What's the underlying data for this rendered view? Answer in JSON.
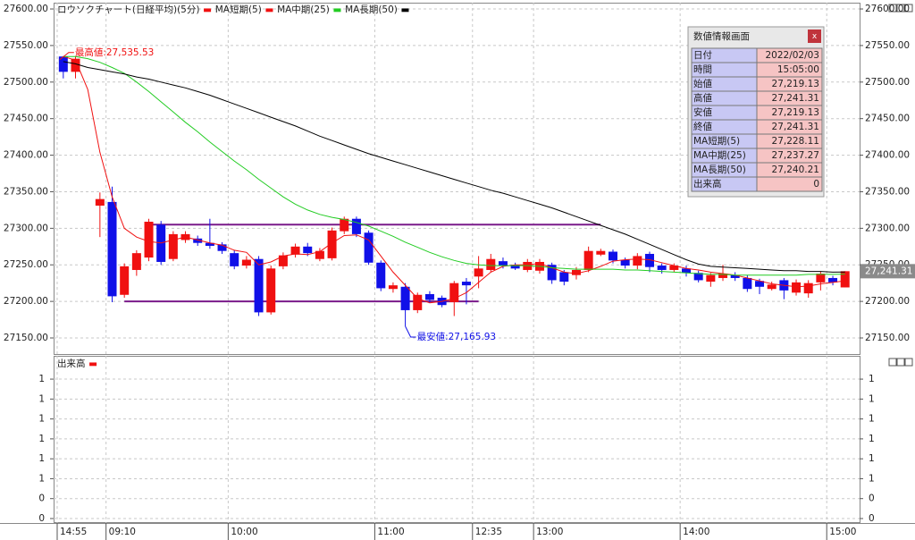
{
  "chart_data": {
    "type": "candlestick",
    "title": "ロウソクチャート(日経平均)(5分)",
    "categories": [
      "14:55",
      null,
      null,
      null,
      "09:10",
      null,
      null,
      null,
      null,
      null,
      null,
      null,
      null,
      null,
      "10:00",
      null,
      null,
      null,
      null,
      null,
      null,
      null,
      null,
      null,
      null,
      null,
      "11:00",
      null,
      null,
      null,
      null,
      null,
      null,
      null,
      "12:35",
      null,
      null,
      null,
      null,
      "13:00",
      null,
      null,
      null,
      null,
      null,
      null,
      null,
      null,
      null,
      null,
      null,
      "14:00",
      null,
      null,
      null,
      null,
      null,
      null,
      null,
      null,
      null,
      null,
      null,
      "15:00",
      null
    ],
    "open": [
      27535,
      27514,
      null,
      27331,
      27336,
      27209,
      27243,
      27260,
      27305,
      27258,
      27284,
      27286,
      27280,
      27278,
      27266,
      27249,
      27258,
      27185,
      27248,
      27264,
      27275,
      27258,
      27259,
      27296,
      27313,
      27294,
      27253,
      27217,
      27220,
      27188,
      27210,
      27205,
      27199,
      27227,
      27234,
      27243,
      27255,
      27250,
      27243,
      27242,
      27250,
      27240,
      27236,
      27243,
      27264,
      27268,
      27257,
      27249,
      27265,
      27249,
      27243,
      27245,
      27239,
      27227,
      27232,
      27236,
      27232,
      27228,
      27217,
      27229,
      27212,
      27211,
      27226,
      27232,
      27219.13
    ],
    "high": [
      27535.53,
      27535,
      null,
      27349,
      27357,
      27252,
      27270,
      27313,
      27310,
      27296,
      27296,
      27290,
      27313,
      27281,
      27270,
      27262,
      27262,
      27249,
      27267,
      27279,
      27280,
      27273,
      27301,
      27316,
      27316,
      27297,
      27256,
      27226,
      27225,
      27212,
      27214,
      27208,
      27228,
      27232,
      27262,
      27265,
      27260,
      27253,
      27258,
      27258,
      27253,
      27243,
      27247,
      27275,
      27272,
      27271,
      27260,
      27266,
      27268,
      27252,
      27252,
      27249,
      27242,
      27239,
      27250,
      27240,
      27236,
      27231,
      27227,
      27232,
      27230,
      27229,
      27241,
      27235,
      27241.31
    ],
    "low": [
      27505,
      27505,
      null,
      27288,
      27199,
      27205,
      27235,
      27255,
      27250,
      27255,
      27280,
      27276,
      27272,
      27265,
      27244,
      27245,
      27180,
      27182,
      27244,
      27260,
      27262,
      27255,
      27256,
      27292,
      27288,
      27250,
      27214,
      27212,
      27165.93,
      27184,
      27198,
      27192,
      27180,
      27196,
      27218,
      27240,
      27245,
      27243,
      27240,
      27238,
      27224,
      27222,
      27230,
      27240,
      27262,
      27252,
      27245,
      27244,
      27240,
      27238,
      27240,
      27234,
      27226,
      27220,
      27228,
      27228,
      27213,
      27210,
      27215,
      27203,
      27208,
      27205,
      27215,
      27222,
      27219.13
    ],
    "close": [
      27514,
      27532,
      null,
      27340,
      27207,
      27248,
      27266,
      27309,
      27254,
      27292,
      27292,
      27280,
      27276,
      27269,
      27248,
      27257,
      27185,
      27245,
      27263,
      27275,
      27266,
      27269,
      27297,
      27313,
      27292,
      27253,
      27218,
      27222,
      27188,
      27209,
      27202,
      27195,
      27225,
      27222,
      27245,
      27258,
      27249,
      27245,
      27254,
      27254,
      27229,
      27227,
      27243,
      27269,
      27269,
      27256,
      27249,
      27262,
      27247,
      27243,
      27249,
      27239,
      27229,
      27236,
      27238,
      27232,
      27217,
      27220,
      27223,
      27215,
      27226,
      27225,
      27238,
      27226,
      27241.31
    ],
    "up_color": "#f01010",
    "down_color": "#1010e8",
    "series": [
      {
        "name": "MA短期(5)",
        "color": "#f01010",
        "values": [
          27535,
          27530,
          27490,
          27404,
          27343,
          27300,
          27288,
          27282,
          27280,
          27284,
          27288,
          27284,
          27280,
          27277,
          27270,
          27267,
          27250,
          27254,
          27262,
          27265,
          27264,
          27268,
          27280,
          27290,
          27291,
          27284,
          27262,
          27240,
          27222,
          27204,
          27198,
          27200,
          27204,
          27212,
          27226,
          27240,
          27248,
          27250,
          27250,
          27252,
          27246,
          27240,
          27238,
          27242,
          27248,
          27255,
          27257,
          27258,
          27257,
          27253,
          27249,
          27245,
          27243,
          27240,
          27238,
          27236,
          27232,
          27228,
          27224,
          27222,
          27220,
          27221,
          27224,
          27226,
          27228.11
        ]
      },
      {
        "name": "MA中期(25)",
        "color": "#22cc22",
        "values": [
          27535,
          27535,
          27532,
          27527,
          27520,
          27512,
          27500,
          27487,
          27473,
          27459,
          27445,
          27432,
          27418,
          27405,
          27392,
          27380,
          27367,
          27355,
          27343,
          27333,
          27325,
          27319,
          27315,
          27312,
          27308,
          27303,
          27296,
          27289,
          27281,
          27274,
          27267,
          27261,
          27256,
          27252,
          27250,
          27249,
          27249,
          27249,
          27249,
          27248,
          27246,
          27245,
          27244,
          27244,
          27244,
          27244,
          27243,
          27243,
          27242,
          27241,
          27240,
          27239,
          27238,
          27237,
          27237,
          27236,
          27236,
          27236,
          27236,
          27236,
          27236,
          27237,
          27237,
          27237,
          27237.27
        ]
      },
      {
        "name": "MA長期(50)",
        "color": "#000000",
        "values": [
          27528,
          27525,
          27520,
          27517,
          27514,
          27511,
          27507,
          27504,
          27500,
          27496,
          27492,
          27487,
          27482,
          27476,
          27470,
          27464,
          27458,
          27452,
          27446,
          27440,
          27433,
          27426,
          27420,
          27414,
          27408,
          27402,
          27397,
          27392,
          27387,
          27382,
          27377,
          27372,
          27367,
          27362,
          27357,
          27352,
          27348,
          27343,
          27338,
          27333,
          27328,
          27322,
          27316,
          27310,
          27304,
          27298,
          27292,
          27285,
          27278,
          27271,
          27264,
          27257,
          27251,
          27248,
          27247,
          27246,
          27245,
          27244,
          27243,
          27242,
          27242,
          27241,
          27241,
          27240,
          27240.21
        ]
      }
    ],
    "ylim": [
      27128,
      27608.6
    ],
    "yticks": [
      {
        "value": 27600,
        "label": "27600.00"
      },
      {
        "value": 27550,
        "label": "27550.00"
      },
      {
        "value": 27500,
        "label": "27500.00"
      },
      {
        "value": 27450,
        "label": "27450.00"
      },
      {
        "value": 27400,
        "label": "27400.00"
      },
      {
        "value": 27350,
        "label": "27350.00"
      },
      {
        "value": 27300,
        "label": "27300.00"
      },
      {
        "value": 27250,
        "label": "27250.00"
      },
      {
        "value": 27200,
        "label": "27200.00"
      },
      {
        "value": 27150,
        "label": "27150.00"
      }
    ],
    "grid": true,
    "high_annotation": "最高値:27,535.53",
    "low_annotation": "最安値:27,165.93",
    "last_label": "27,241.31",
    "levels": [
      {
        "value": 27305,
        "color": "#7a1a8a",
        "x": [
          7,
          44
        ]
      },
      {
        "value": 27200,
        "color": "#7a1a8a",
        "x": [
          5,
          34
        ]
      }
    ]
  },
  "volume": {
    "title": "出来高",
    "color": "#f01010",
    "ylim": [
      0.055,
      1.734
    ],
    "yticks": [
      {
        "value": 1.5,
        "label": "1"
      },
      {
        "value": 1.3,
        "label": "1"
      },
      {
        "value": 1.1,
        "label": "1"
      },
      {
        "value": 0.9,
        "label": "1"
      },
      {
        "value": 0.7,
        "label": "1"
      },
      {
        "value": 0.5,
        "label": "1"
      },
      {
        "value": 0.3,
        "label": "0"
      },
      {
        "value": 0.1,
        "label": "0"
      }
    ]
  },
  "info_panel": {
    "title": "数値情報画面",
    "close": "x",
    "rows": [
      [
        "日付",
        "2022/02/03"
      ],
      [
        "時間",
        "15:05:00"
      ],
      [
        "始値",
        "27,219.13"
      ],
      [
        "高値",
        "27,241.31"
      ],
      [
        "安値",
        "27,219.13"
      ],
      [
        "終値",
        "27,241.31"
      ],
      [
        "MA短期(5)",
        "27,228.11"
      ],
      [
        "MA中期(25)",
        "27,237.27"
      ],
      [
        "MA長期(50)",
        "27,240.21"
      ],
      [
        "出来高",
        "0"
      ]
    ]
  }
}
